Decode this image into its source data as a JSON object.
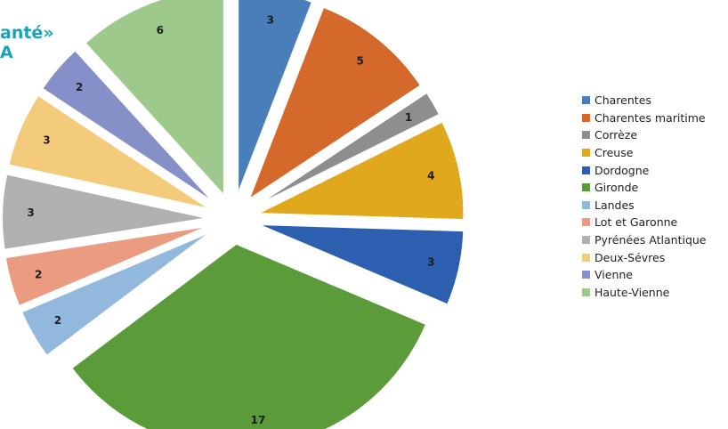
{
  "title_fragment_line1": "anté»",
  "title_fragment_line2": "A",
  "chart_data": {
    "type": "pie",
    "exploded": true,
    "legend_position": "right",
    "categories": [
      "Charentes",
      "Charentes maritime",
      "Corrèze",
      "Creuse",
      "Dordogne",
      "Gironde",
      "Landes",
      "Lot et Garonne",
      "Pyrénées Atlantique",
      "Deux-Sévres",
      "Vienne",
      "Haute-Vienne"
    ],
    "values": [
      3,
      5,
      1,
      4,
      3,
      17,
      2,
      2,
      3,
      3,
      2,
      6
    ],
    "colors": [
      "#4a7ebb",
      "#d5692b",
      "#8e8e8e",
      "#e0a91d",
      "#2d5fb0",
      "#5c9b3a",
      "#93b8de",
      "#eb9b80",
      "#b0b0b0",
      "#f4cb7a",
      "#8590c9",
      "#9dc98c"
    ]
  }
}
